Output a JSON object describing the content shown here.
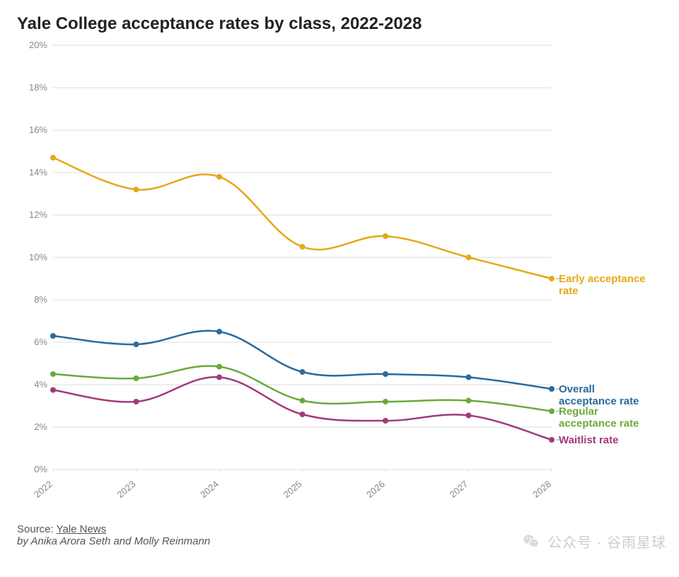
{
  "title": "Yale College acceptance rates by class, 2022-2028",
  "source_label": "Source:",
  "source_name": "Yale News",
  "byline": "by Anika Arora Seth and Molly Reinmann",
  "watermark": "公众号 · 谷雨星球",
  "chart": {
    "type": "line",
    "background_color": "#ffffff",
    "grid_color": "#dddddd",
    "axis_text_color": "#888888",
    "axis_fontsize": 13,
    "title_fontsize": 24,
    "title_color": "#222222",
    "line_width": 2.5,
    "marker_radius": 4,
    "xlim": [
      2022,
      2028
    ],
    "ylim": [
      0,
      20
    ],
    "ytick_step": 2,
    "y_suffix": "%",
    "x_ticks": [
      2022,
      2023,
      2024,
      2025,
      2026,
      2027,
      2028
    ],
    "label_fontsize": 15,
    "label_weight": 700,
    "series": [
      {
        "id": "early",
        "label_lines": [
          "Early acceptance",
          "rate"
        ],
        "color": "#e6a817",
        "data": [
          {
            "x": 2022,
            "y": 14.7
          },
          {
            "x": 2023,
            "y": 13.2
          },
          {
            "x": 2024,
            "y": 13.8
          },
          {
            "x": 2025,
            "y": 10.5
          },
          {
            "x": 2026,
            "y": 11.0
          },
          {
            "x": 2027,
            "y": 10.0
          },
          {
            "x": 2028,
            "y": 9.0
          }
        ]
      },
      {
        "id": "overall",
        "label_lines": [
          "Overall",
          "acceptance rate"
        ],
        "color": "#2a6a9e",
        "data": [
          {
            "x": 2022,
            "y": 6.3
          },
          {
            "x": 2023,
            "y": 5.9
          },
          {
            "x": 2024,
            "y": 6.5
          },
          {
            "x": 2025,
            "y": 4.6
          },
          {
            "x": 2026,
            "y": 4.5
          },
          {
            "x": 2027,
            "y": 4.35
          },
          {
            "x": 2028,
            "y": 3.8
          }
        ]
      },
      {
        "id": "regular",
        "label_lines": [
          "Regular",
          "acceptance rate"
        ],
        "color": "#6aaa3a",
        "data": [
          {
            "x": 2022,
            "y": 4.5
          },
          {
            "x": 2023,
            "y": 4.3
          },
          {
            "x": 2024,
            "y": 4.85
          },
          {
            "x": 2025,
            "y": 3.25
          },
          {
            "x": 2026,
            "y": 3.2
          },
          {
            "x": 2027,
            "y": 3.25
          },
          {
            "x": 2028,
            "y": 2.75
          }
        ]
      },
      {
        "id": "waitlist",
        "label_lines": [
          "Waitlist rate"
        ],
        "color": "#a23a7a",
        "data": [
          {
            "x": 2022,
            "y": 3.75
          },
          {
            "x": 2023,
            "y": 3.2
          },
          {
            "x": 2024,
            "y": 4.35
          },
          {
            "x": 2025,
            "y": 2.6
          },
          {
            "x": 2026,
            "y": 2.3
          },
          {
            "x": 2027,
            "y": 2.55
          },
          {
            "x": 2028,
            "y": 1.4
          }
        ]
      }
    ]
  }
}
